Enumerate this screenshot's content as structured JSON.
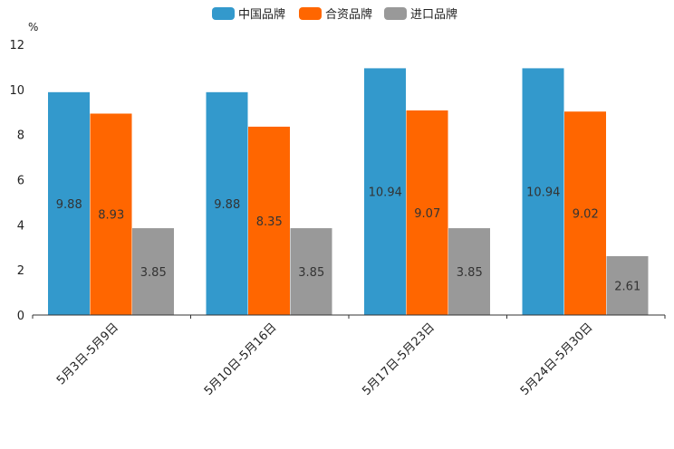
{
  "chart_data": {
    "type": "bar",
    "unit": "%",
    "categories": [
      "5月3日-5月9日",
      "5月10日-5月16日",
      "5月17日-5月23日",
      "5月24日-5月30日"
    ],
    "series": [
      {
        "name": "中国品牌",
        "color": "#3399cc",
        "values": [
          9.88,
          9.88,
          10.94,
          10.94
        ]
      },
      {
        "name": "合资品牌",
        "color": "#ff6600",
        "values": [
          8.93,
          8.35,
          9.07,
          9.02
        ]
      },
      {
        "name": "进口品牌",
        "color": "#999999",
        "values": [
          3.85,
          3.85,
          3.85,
          2.61
        ]
      }
    ],
    "ylim": [
      0,
      12
    ],
    "yticks": [
      "0",
      "2",
      "4",
      "6",
      "8",
      "10",
      "12"
    ],
    "value_labels": [
      [
        "9.88",
        "9.88",
        "10.94",
        "10.94"
      ],
      [
        "8.93",
        "8.35",
        "9.07",
        "9.02"
      ],
      [
        "3.85",
        "3.85",
        "3.85",
        "2.61"
      ]
    ],
    "legend_position": "top-center",
    "grid": false
  }
}
